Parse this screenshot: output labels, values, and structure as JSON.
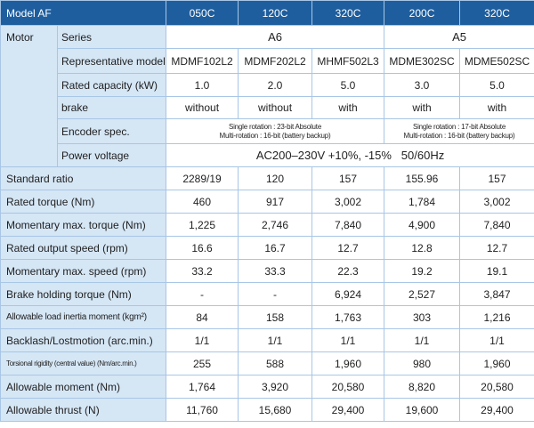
{
  "header": {
    "title": "Model AF",
    "models": [
      "050C",
      "120C",
      "320C",
      "200C",
      "320C"
    ]
  },
  "motor": {
    "group_label": "Motor",
    "series_label": "Series",
    "series": [
      "A6",
      "A5"
    ],
    "rep_model_label": "Representative model",
    "rep_models": [
      "MDMF102L2",
      "MDMF202L2",
      "MHMF502L3",
      "MDME302SC",
      "MDME502SC"
    ],
    "capacity_label": "Rated capacity (kW)",
    "capacities": [
      "1.0",
      "2.0",
      "5.0",
      "3.0",
      "5.0"
    ],
    "brake_label": "brake",
    "brakes": [
      "without",
      "without",
      "with",
      "with",
      "with"
    ],
    "encoder_label": "Encoder spec.",
    "encoder": [
      {
        "line1": "Single rotation : 23-bit Absolute",
        "line2": "Multi-rotation : 16-bit (battery backup)"
      },
      {
        "line1": "Single rotation : 17-bit Absolute",
        "line2": "Multi-rotation : 16-bit (battery backup)"
      }
    ],
    "power_label": "Power voltage",
    "power_value": "AC200–230V +10%, -15%   50/60Hz"
  },
  "rows": [
    {
      "label": "Standard ratio",
      "values": [
        "2289/19",
        "120",
        "157",
        "155.96",
        "157"
      ]
    },
    {
      "label": "Rated torque (Nm)",
      "values": [
        "460",
        "917",
        "3,002",
        "1,784",
        "3,002"
      ]
    },
    {
      "label": "Momentary max. torque (Nm)",
      "values": [
        "1,225",
        "2,746",
        "7,840",
        "4,900",
        "7,840"
      ]
    },
    {
      "label": "Rated output speed (rpm)",
      "values": [
        "16.6",
        "16.7",
        "12.7",
        "12.8",
        "12.7"
      ]
    },
    {
      "label": "Momentary max. speed (rpm)",
      "values": [
        "33.2",
        "33.3",
        "22.3",
        "19.2",
        "19.1"
      ]
    },
    {
      "label": "Brake holding torque (Nm)",
      "values": [
        "-",
        "-",
        "6,924",
        "2,527",
        "3,847"
      ]
    },
    {
      "label": "Allowable load inertia moment (kgm²)",
      "values": [
        "84",
        "158",
        "1,763",
        "303",
        "1,216"
      ]
    },
    {
      "label": "Backlash/Lostmotion (arc.min.)",
      "values": [
        "1/1",
        "1/1",
        "1/1",
        "1/1",
        "1/1"
      ]
    },
    {
      "label": "Torsional rigidity (central value) (Nm/arc.min.)",
      "values": [
        "255",
        "588",
        "1,960",
        "980",
        "1,960"
      ]
    },
    {
      "label": "Allowable moment (Nm)",
      "values": [
        "1,764",
        "3,920",
        "20,580",
        "8,820",
        "20,580"
      ]
    },
    {
      "label": "Allowable thrust (N)",
      "values": [
        "11,760",
        "15,680",
        "29,400",
        "19,600",
        "29,400"
      ]
    }
  ]
}
